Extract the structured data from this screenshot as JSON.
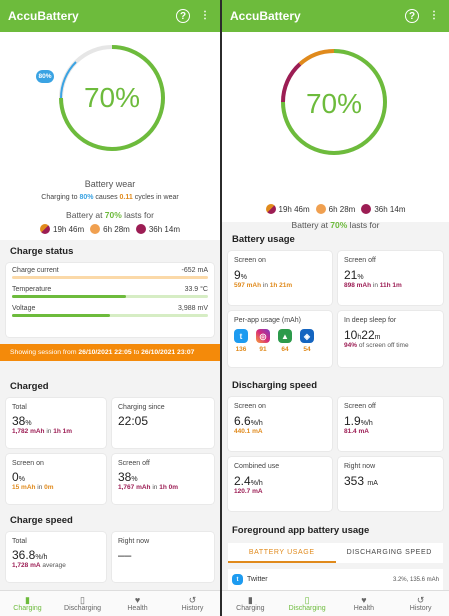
{
  "app_title": "AccuBattery",
  "left": {
    "battery_percent": "70%",
    "badge": "80%",
    "wear_title": "Battery wear",
    "wear_pre": "Charging to ",
    "wear_target": "80%",
    "wear_mid": " causes ",
    "wear_cycles": "0.11",
    "wear_post": " cycles in wear",
    "lasts_pre": "Battery at ",
    "lasts_pct": "70%",
    "lasts_post": " lasts for",
    "chips": [
      "19h 46m",
      "6h 28m",
      "36h 14m"
    ],
    "charge_status_title": "Charge status",
    "charge_current_label": "Charge current",
    "charge_current_value": "-652 mA",
    "temperature_label": "Temperature",
    "temperature_value": "33.9 °C",
    "temperature_level": 0.58,
    "voltage_label": "Voltage",
    "voltage_value": "3,988 mV",
    "voltage_level": 0.5,
    "banner_pre": "Showing session from ",
    "banner_from": "26/10/2021 22:05",
    "banner_mid": " to ",
    "banner_to": "26/10/2021 23:07",
    "charged_title": "Charged",
    "total_label": "Total",
    "total_value": "38",
    "total_mah": "1,782 mAh",
    "total_in": " in ",
    "total_time": "1h 1m",
    "since_label": "Charging since",
    "since_value": "22:05",
    "screen_on_label": "Screen on",
    "screen_on_value": "0",
    "screen_on_mah": "15 mAh",
    "screen_on_time": "0m",
    "screen_off_label": "Screen off",
    "screen_off_value": "38",
    "screen_off_mah": "1,767 mAh",
    "screen_off_time": "1h 0m",
    "speed_title": "Charge speed",
    "speed_total_label": "Total",
    "speed_total_value": "36.8",
    "speed_unit": "%/h",
    "speed_total_ma": "1,728 mA",
    "speed_avg": " average",
    "right_now_label": "Right now",
    "right_now_value": "––",
    "pct_sign": "%"
  },
  "right": {
    "battery_percent": "70%",
    "lasts_pre": "Battery at ",
    "lasts_pct": "70%",
    "lasts_post": " lasts for",
    "chips": [
      "19h 46m",
      "6h 28m",
      "36h 14m"
    ],
    "usage_title": "Battery usage",
    "screen_on_label": "Screen on",
    "screen_on_value": "9",
    "screen_on_mah": "597 mAh",
    "screen_on_time": "1h 21m",
    "screen_off_label": "Screen off",
    "screen_off_value": "21",
    "screen_off_mah": "898 mAh",
    "screen_off_time": "11h 1m",
    "per_app_label": "Per-app usage (mAh)",
    "per_app_values": [
      "136",
      "91",
      "64",
      "54"
    ],
    "deep_sleep_label": "In deep sleep for",
    "deep_sleep_h": "10",
    "deep_sleep_m": "22",
    "deep_sleep_pct": "94%",
    "deep_sleep_sub": " of screen off time",
    "dis_title": "Discharging speed",
    "dis_on_label": "Screen on",
    "dis_on_value": "6.6",
    "dis_on_ma": "440.1 mA",
    "dis_off_label": "Screen off",
    "dis_off_value": "1.9",
    "dis_off_ma": "81.4 mA",
    "combined_label": "Combined use",
    "combined_value": "2.4",
    "combined_ma": "120.7 mA",
    "right_now_label": "Right now",
    "right_now_value": "353",
    "right_now_unit": "mA",
    "unit_h": "%/h",
    "pct_sign": "%",
    "fg_title": "Foreground app battery usage",
    "tab_usage": "BATTERY USAGE",
    "tab_speed": "DISCHARGING SPEED",
    "fg_app_name": "Twitter",
    "fg_app_value": "3.2%, 135.6 mAh"
  },
  "nav": [
    "Charging",
    "Discharging",
    "Health",
    "History"
  ],
  "colors": {
    "accent": "#6dbb3c",
    "orange": "#e08a1c",
    "magenta": "#9c1d54",
    "banner": "#f48a0a"
  },
  "icons": [
    "help-icon",
    "more-vert-icon",
    "charging-icon",
    "discharging-icon",
    "health-icon",
    "history-icon"
  ]
}
